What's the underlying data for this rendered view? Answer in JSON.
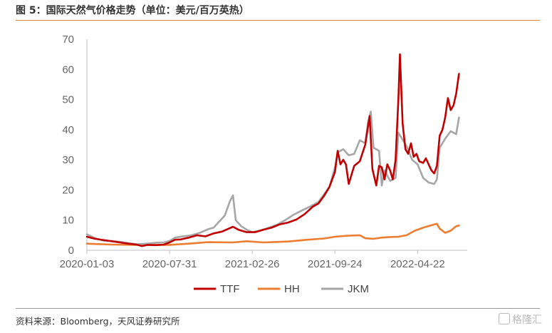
{
  "title": "图 5：国际天然气价格走势（单位：美元/百万英热）",
  "source": "资料来源：Bloomberg，天风证券研究所",
  "watermark": "格隆汇",
  "chart_data": {
    "type": "line",
    "ylim": [
      0,
      70
    ],
    "yticks": [
      0,
      10,
      20,
      30,
      40,
      50,
      60,
      70
    ],
    "xlim": [
      "2020-01-03",
      "2022-08-26"
    ],
    "xticks": [
      "2020-01-03",
      "2020-07-31",
      "2021-02-26",
      "2021-09-24",
      "2022-04-22"
    ],
    "grid": false,
    "legend_position": "bottom",
    "series": [
      {
        "name": "TTF",
        "color": "#c00000",
        "points": [
          [
            "2020-01-03",
            4.5
          ],
          [
            "2020-01-24",
            3.8
          ],
          [
            "2020-02-14",
            3.4
          ],
          [
            "2020-03-06",
            3.0
          ],
          [
            "2020-03-27",
            2.6
          ],
          [
            "2020-04-17",
            2.2
          ],
          [
            "2020-05-08",
            1.9
          ],
          [
            "2020-05-22",
            1.4
          ],
          [
            "2020-06-05",
            1.8
          ],
          [
            "2020-06-26",
            1.7
          ],
          [
            "2020-07-17",
            1.9
          ],
          [
            "2020-07-31",
            2.6
          ],
          [
            "2020-08-14",
            3.5
          ],
          [
            "2020-08-28",
            3.6
          ],
          [
            "2020-09-18",
            4.2
          ],
          [
            "2020-10-09",
            5.0
          ],
          [
            "2020-10-30",
            4.6
          ],
          [
            "2020-11-20",
            5.6
          ],
          [
            "2020-12-11",
            6.2
          ],
          [
            "2021-01-08",
            7.8
          ],
          [
            "2021-01-22",
            6.8
          ],
          [
            "2021-02-12",
            6.0
          ],
          [
            "2021-03-05",
            6.0
          ],
          [
            "2021-03-26",
            6.8
          ],
          [
            "2021-04-16",
            7.5
          ],
          [
            "2021-05-07",
            8.6
          ],
          [
            "2021-05-28",
            9.2
          ],
          [
            "2021-06-18",
            10.2
          ],
          [
            "2021-07-09",
            12.0
          ],
          [
            "2021-07-30",
            14.5
          ],
          [
            "2021-08-13",
            15.5
          ],
          [
            "2021-08-27",
            18.0
          ],
          [
            "2021-09-10",
            21.0
          ],
          [
            "2021-09-24",
            26.0
          ],
          [
            "2021-10-01",
            33.0
          ],
          [
            "2021-10-08",
            28.5
          ],
          [
            "2021-10-15",
            30.0
          ],
          [
            "2021-10-22",
            28.5
          ],
          [
            "2021-10-29",
            22.0
          ],
          [
            "2021-11-12",
            28.0
          ],
          [
            "2021-11-26",
            29.5
          ],
          [
            "2021-12-10",
            35.0
          ],
          [
            "2021-12-21",
            44.5
          ],
          [
            "2021-12-28",
            27.0
          ],
          [
            "2022-01-07",
            21.5
          ],
          [
            "2022-01-14",
            28.0
          ],
          [
            "2022-01-21",
            27.5
          ],
          [
            "2022-01-28",
            23.5
          ],
          [
            "2022-02-04",
            28.5
          ],
          [
            "2022-02-11",
            26.5
          ],
          [
            "2022-02-18",
            23.5
          ],
          [
            "2022-02-25",
            30.0
          ],
          [
            "2022-03-04",
            50.0
          ],
          [
            "2022-03-08",
            65.0
          ],
          [
            "2022-03-15",
            42.0
          ],
          [
            "2022-03-22",
            33.5
          ],
          [
            "2022-03-29",
            32.0
          ],
          [
            "2022-04-05",
            35.5
          ],
          [
            "2022-04-12",
            31.0
          ],
          [
            "2022-04-19",
            32.0
          ],
          [
            "2022-04-26",
            29.5
          ],
          [
            "2022-05-06",
            29.0
          ],
          [
            "2022-05-13",
            30.5
          ],
          [
            "2022-05-20",
            28.5
          ],
          [
            "2022-05-27",
            26.5
          ],
          [
            "2022-06-03",
            25.5
          ],
          [
            "2022-06-10",
            28.0
          ],
          [
            "2022-06-17",
            38.0
          ],
          [
            "2022-06-24",
            40.0
          ],
          [
            "2022-07-01",
            44.0
          ],
          [
            "2022-07-08",
            50.5
          ],
          [
            "2022-07-15",
            46.5
          ],
          [
            "2022-07-22",
            48.0
          ],
          [
            "2022-07-29",
            52.0
          ],
          [
            "2022-08-05",
            58.5
          ]
        ]
      },
      {
        "name": "HH",
        "color": "#ed7d31",
        "points": [
          [
            "2020-01-03",
            2.2
          ],
          [
            "2020-03-06",
            1.9
          ],
          [
            "2020-05-08",
            1.8
          ],
          [
            "2020-07-31",
            1.8
          ],
          [
            "2020-09-18",
            2.2
          ],
          [
            "2020-11-06",
            2.7
          ],
          [
            "2021-01-08",
            2.6
          ],
          [
            "2021-02-12",
            3.0
          ],
          [
            "2021-03-26",
            2.6
          ],
          [
            "2021-05-28",
            2.9
          ],
          [
            "2021-07-16",
            3.5
          ],
          [
            "2021-08-27",
            3.9
          ],
          [
            "2021-09-24",
            4.5
          ],
          [
            "2021-10-22",
            4.8
          ],
          [
            "2021-11-26",
            5.0
          ],
          [
            "2021-12-10",
            4.0
          ],
          [
            "2021-12-31",
            3.8
          ],
          [
            "2022-01-21",
            4.2
          ],
          [
            "2022-02-11",
            4.4
          ],
          [
            "2022-03-04",
            4.5
          ],
          [
            "2022-03-25",
            5.0
          ],
          [
            "2022-04-15",
            6.5
          ],
          [
            "2022-05-06",
            7.5
          ],
          [
            "2022-05-27",
            8.3
          ],
          [
            "2022-06-10",
            8.8
          ],
          [
            "2022-06-17",
            7.2
          ],
          [
            "2022-07-01",
            5.8
          ],
          [
            "2022-07-15",
            6.5
          ],
          [
            "2022-07-29",
            8.0
          ],
          [
            "2022-08-05",
            8.2
          ]
        ]
      },
      {
        "name": "JKM",
        "color": "#a6a6a6",
        "points": [
          [
            "2020-01-03",
            5.3
          ],
          [
            "2020-01-24",
            4.0
          ],
          [
            "2020-02-14",
            3.2
          ],
          [
            "2020-03-06",
            3.1
          ],
          [
            "2020-03-27",
            2.8
          ],
          [
            "2020-04-17",
            2.4
          ],
          [
            "2020-05-08",
            2.0
          ],
          [
            "2020-06-05",
            2.2
          ],
          [
            "2020-06-26",
            2.5
          ],
          [
            "2020-07-17",
            2.6
          ],
          [
            "2020-07-31",
            3.1
          ],
          [
            "2020-08-14",
            4.2
          ],
          [
            "2020-09-04",
            4.6
          ],
          [
            "2020-09-25",
            5.0
          ],
          [
            "2020-10-16",
            5.8
          ],
          [
            "2020-11-06",
            7.0
          ],
          [
            "2020-11-20",
            7.5
          ],
          [
            "2020-12-04",
            9.5
          ],
          [
            "2020-12-18",
            11.5
          ],
          [
            "2021-01-01",
            16.5
          ],
          [
            "2021-01-08",
            18.2
          ],
          [
            "2021-01-15",
            10.0
          ],
          [
            "2021-01-29",
            8.0
          ],
          [
            "2021-02-12",
            6.8
          ],
          [
            "2021-02-26",
            6.0
          ],
          [
            "2021-03-19",
            6.6
          ],
          [
            "2021-04-09",
            7.5
          ],
          [
            "2021-04-30",
            8.5
          ],
          [
            "2021-05-21",
            10.0
          ],
          [
            "2021-06-11",
            11.8
          ],
          [
            "2021-07-02",
            13.2
          ],
          [
            "2021-07-23",
            14.5
          ],
          [
            "2021-08-13",
            16.0
          ],
          [
            "2021-08-27",
            18.5
          ],
          [
            "2021-09-10",
            21.0
          ],
          [
            "2021-09-24",
            27.5
          ],
          [
            "2021-10-01",
            32.5
          ],
          [
            "2021-10-15",
            33.5
          ],
          [
            "2021-10-29",
            31.5
          ],
          [
            "2021-11-12",
            32.0
          ],
          [
            "2021-11-26",
            36.5
          ],
          [
            "2021-12-10",
            35.5
          ],
          [
            "2021-12-17",
            42.5
          ],
          [
            "2021-12-24",
            46.0
          ],
          [
            "2021-12-31",
            34.0
          ],
          [
            "2022-01-14",
            33.0
          ],
          [
            "2022-01-21",
            21.5
          ],
          [
            "2022-01-28",
            26.5
          ],
          [
            "2022-02-11",
            23.0
          ],
          [
            "2022-02-25",
            24.0
          ],
          [
            "2022-03-04",
            39.0
          ],
          [
            "2022-03-18",
            36.0
          ],
          [
            "2022-03-25",
            34.5
          ],
          [
            "2022-04-08",
            30.0
          ],
          [
            "2022-04-22",
            28.5
          ],
          [
            "2022-05-06",
            24.0
          ],
          [
            "2022-05-20",
            22.5
          ],
          [
            "2022-06-03",
            22.0
          ],
          [
            "2022-06-10",
            23.5
          ],
          [
            "2022-06-17",
            34.0
          ],
          [
            "2022-07-01",
            37.0
          ],
          [
            "2022-07-15",
            39.5
          ],
          [
            "2022-07-29",
            38.5
          ],
          [
            "2022-08-05",
            44.0
          ]
        ]
      }
    ]
  }
}
